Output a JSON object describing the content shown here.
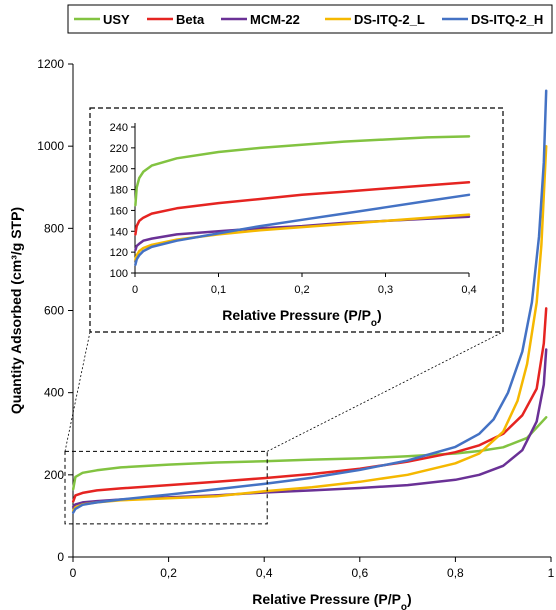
{
  "chart_data": [
    {
      "type": "line",
      "xlabel_main": "Relative Pressure (P/P",
      "xlabel_sub": "o",
      "xlabel_close": ")",
      "ylabel": "Quantity Adsorbed (cm³/g STP)",
      "xlim": [
        0,
        1
      ],
      "ylim": [
        0,
        1200
      ],
      "xticks": [
        0,
        0.2,
        0.4,
        0.6,
        0.8,
        1
      ],
      "xtick_labels": [
        "0",
        "0,2",
        "0,4",
        "0,6",
        "0,8",
        "1"
      ],
      "yticks": [
        0,
        200,
        400,
        600,
        800,
        1000,
        1200
      ],
      "ytick_labels": [
        "0",
        "200",
        "400",
        "600",
        "800",
        "1000",
        "1200"
      ],
      "grid": false,
      "legend_position": "top",
      "series": [
        {
          "name": "USY",
          "color": "#82c341",
          "x": [
            0.0005,
            0.005,
            0.02,
            0.05,
            0.1,
            0.2,
            0.3,
            0.4,
            0.5,
            0.6,
            0.7,
            0.8,
            0.85,
            0.9,
            0.95,
            0.99
          ],
          "y": [
            165,
            195,
            205,
            211,
            218,
            225,
            230,
            233,
            237,
            240,
            245,
            252,
            258,
            267,
            290,
            340
          ]
        },
        {
          "name": "Beta",
          "color": "#e52421",
          "x": [
            0.0005,
            0.005,
            0.02,
            0.05,
            0.1,
            0.2,
            0.3,
            0.4,
            0.5,
            0.6,
            0.7,
            0.8,
            0.85,
            0.9,
            0.94,
            0.97,
            0.985,
            0.99
          ],
          "y": [
            135,
            150,
            156,
            162,
            167,
            175,
            183,
            192,
            202,
            215,
            232,
            255,
            272,
            300,
            345,
            410,
            520,
            605
          ]
        },
        {
          "name": "MCM-22",
          "color": "#6a3196",
          "x": [
            0.0005,
            0.005,
            0.02,
            0.05,
            0.1,
            0.2,
            0.3,
            0.4,
            0.5,
            0.6,
            0.7,
            0.8,
            0.85,
            0.9,
            0.94,
            0.97,
            0.985,
            0.99
          ],
          "y": [
            122,
            128,
            133,
            136,
            140,
            145,
            150,
            157,
            162,
            168,
            175,
            188,
            200,
            222,
            260,
            330,
            420,
            505
          ]
        },
        {
          "name": "DS-ITQ-2_L",
          "color": "#f5b800",
          "x": [
            0.0005,
            0.005,
            0.02,
            0.05,
            0.1,
            0.2,
            0.3,
            0.4,
            0.5,
            0.6,
            0.7,
            0.8,
            0.85,
            0.9,
            0.93,
            0.95,
            0.97,
            0.98,
            0.99
          ],
          "y": [
            112,
            121,
            128,
            133,
            138,
            143,
            148,
            160,
            170,
            183,
            200,
            228,
            252,
            305,
            380,
            470,
            620,
            760,
            1000
          ]
        },
        {
          "name": "DS-ITQ-2_H",
          "color": "#4472c4",
          "x": [
            0.0005,
            0.005,
            0.02,
            0.05,
            0.1,
            0.2,
            0.3,
            0.4,
            0.5,
            0.6,
            0.7,
            0.8,
            0.85,
            0.88,
            0.91,
            0.94,
            0.96,
            0.975,
            0.985,
            0.99
          ],
          "y": [
            108,
            117,
            127,
            133,
            140,
            152,
            165,
            178,
            193,
            212,
            235,
            268,
            300,
            335,
            400,
            500,
            620,
            780,
            960,
            1135
          ]
        }
      ]
    },
    {
      "type": "line",
      "xlabel_main": "Relative Pressure (P/P",
      "xlabel_sub": "o",
      "xlabel_close": ")",
      "xlim": [
        0,
        0.4
      ],
      "ylim": [
        100,
        240
      ],
      "xticks": [
        0,
        0.1,
        0.2,
        0.3,
        0.4
      ],
      "xtick_labels": [
        "0",
        "0,1",
        "0,2",
        "0,3",
        "0,4"
      ],
      "yticks": [
        100,
        120,
        140,
        160,
        180,
        200,
        220,
        240
      ],
      "ytick_labels": [
        "100",
        "120",
        "140",
        "160",
        "180",
        "200",
        "220",
        "240"
      ],
      "grid": false,
      "series": [
        {
          "name": "USY",
          "color": "#82c341",
          "x": [
            0.0005,
            0.002,
            0.005,
            0.01,
            0.02,
            0.05,
            0.1,
            0.15,
            0.2,
            0.25,
            0.3,
            0.35,
            0.4
          ],
          "y": [
            165,
            182,
            191,
            197,
            203,
            210,
            216,
            220,
            223,
            226,
            228,
            230,
            231
          ]
        },
        {
          "name": "Beta",
          "color": "#e52421",
          "x": [
            0.0005,
            0.002,
            0.005,
            0.01,
            0.02,
            0.05,
            0.1,
            0.15,
            0.2,
            0.25,
            0.3,
            0.35,
            0.4
          ],
          "y": [
            137,
            145,
            150,
            153,
            157,
            162,
            167,
            171,
            175,
            178,
            181,
            184,
            187
          ]
        },
        {
          "name": "MCM-22",
          "color": "#6a3196",
          "x": [
            0.0005,
            0.002,
            0.005,
            0.01,
            0.02,
            0.05,
            0.1,
            0.15,
            0.2,
            0.25,
            0.3,
            0.35,
            0.4
          ],
          "y": [
            122,
            126,
            128,
            131,
            133,
            137,
            140,
            143,
            145,
            148,
            150,
            152,
            154
          ]
        },
        {
          "name": "DS-ITQ-2_L",
          "color": "#f5b800",
          "x": [
            0.0005,
            0.002,
            0.005,
            0.01,
            0.02,
            0.05,
            0.1,
            0.15,
            0.2,
            0.25,
            0.3,
            0.35,
            0.4
          ],
          "y": [
            113,
            117,
            121,
            124,
            127,
            132,
            137,
            141,
            144,
            147,
            150,
            153,
            156
          ]
        },
        {
          "name": "DS-ITQ-2_H",
          "color": "#4472c4",
          "x": [
            0.0005,
            0.002,
            0.005,
            0.01,
            0.02,
            0.05,
            0.1,
            0.15,
            0.2,
            0.25,
            0.3,
            0.35,
            0.4
          ],
          "y": [
            108,
            113,
            117,
            121,
            125,
            131,
            138,
            145,
            151,
            157,
            163,
            169,
            175
          ]
        }
      ]
    }
  ]
}
